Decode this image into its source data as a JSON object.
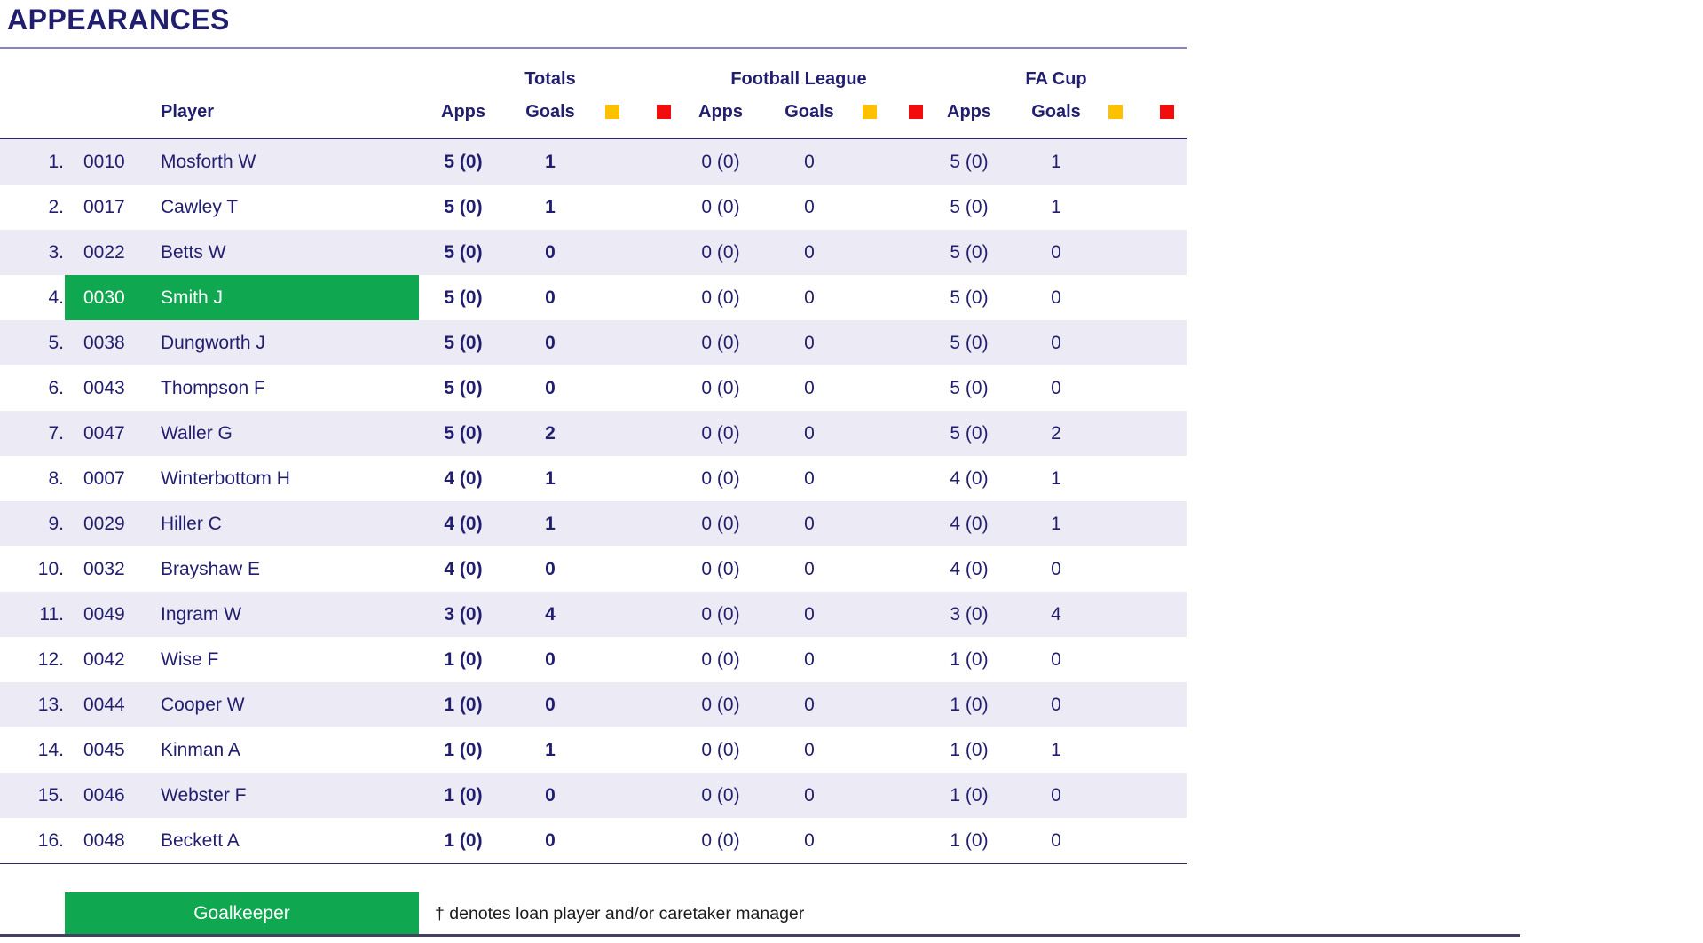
{
  "title": "APPEARANCES",
  "colors": {
    "navy": "#211E6E",
    "row_alt": "#ECEAF5",
    "green": "#0FA750",
    "yellow_card": "#FFC000",
    "red_card": "#F20C0C",
    "rule_purple": "#8884BE",
    "rule_navy": "#2C2966",
    "bottom_rule": "#43435F",
    "footnote_color": "#1A1A1A"
  },
  "table": {
    "groups": {
      "totals": "Totals",
      "football_league": "Football League",
      "fa_cup": "FA Cup"
    },
    "columns": {
      "player": "Player",
      "apps": "Apps",
      "goals": "Goals"
    },
    "rows": [
      {
        "rank": "1.",
        "id": "0010",
        "name": "Mosforth W",
        "totals_apps": "5 (0)",
        "totals_goals": "1",
        "fl_apps": "0 (0)",
        "fl_goals": "0",
        "fa_apps": "5 (0)",
        "fa_goals": "1",
        "goalkeeper": false
      },
      {
        "rank": "2.",
        "id": "0017",
        "name": "Cawley T",
        "totals_apps": "5 (0)",
        "totals_goals": "1",
        "fl_apps": "0 (0)",
        "fl_goals": "0",
        "fa_apps": "5 (0)",
        "fa_goals": "1",
        "goalkeeper": false
      },
      {
        "rank": "3.",
        "id": "0022",
        "name": "Betts W",
        "totals_apps": "5 (0)",
        "totals_goals": "0",
        "fl_apps": "0 (0)",
        "fl_goals": "0",
        "fa_apps": "5 (0)",
        "fa_goals": "0",
        "goalkeeper": false
      },
      {
        "rank": "4.",
        "id": "0030",
        "name": "Smith J",
        "totals_apps": "5 (0)",
        "totals_goals": "0",
        "fl_apps": "0 (0)",
        "fl_goals": "0",
        "fa_apps": "5 (0)",
        "fa_goals": "0",
        "goalkeeper": true
      },
      {
        "rank": "5.",
        "id": "0038",
        "name": "Dungworth J",
        "totals_apps": "5 (0)",
        "totals_goals": "0",
        "fl_apps": "0 (0)",
        "fl_goals": "0",
        "fa_apps": "5 (0)",
        "fa_goals": "0",
        "goalkeeper": false
      },
      {
        "rank": "6.",
        "id": "0043",
        "name": "Thompson F",
        "totals_apps": "5 (0)",
        "totals_goals": "0",
        "fl_apps": "0 (0)",
        "fl_goals": "0",
        "fa_apps": "5 (0)",
        "fa_goals": "0",
        "goalkeeper": false
      },
      {
        "rank": "7.",
        "id": "0047",
        "name": "Waller G",
        "totals_apps": "5 (0)",
        "totals_goals": "2",
        "fl_apps": "0 (0)",
        "fl_goals": "0",
        "fa_apps": "5 (0)",
        "fa_goals": "2",
        "goalkeeper": false
      },
      {
        "rank": "8.",
        "id": "0007",
        "name": "Winterbottom H",
        "totals_apps": "4 (0)",
        "totals_goals": "1",
        "fl_apps": "0 (0)",
        "fl_goals": "0",
        "fa_apps": "4 (0)",
        "fa_goals": "1",
        "goalkeeper": false
      },
      {
        "rank": "9.",
        "id": "0029",
        "name": "Hiller C",
        "totals_apps": "4 (0)",
        "totals_goals": "1",
        "fl_apps": "0 (0)",
        "fl_goals": "0",
        "fa_apps": "4 (0)",
        "fa_goals": "1",
        "goalkeeper": false
      },
      {
        "rank": "10.",
        "id": "0032",
        "name": "Brayshaw E",
        "totals_apps": "4 (0)",
        "totals_goals": "0",
        "fl_apps": "0 (0)",
        "fl_goals": "0",
        "fa_apps": "4 (0)",
        "fa_goals": "0",
        "goalkeeper": false
      },
      {
        "rank": "11.",
        "id": "0049",
        "name": "Ingram W",
        "totals_apps": "3 (0)",
        "totals_goals": "4",
        "fl_apps": "0 (0)",
        "fl_goals": "0",
        "fa_apps": "3 (0)",
        "fa_goals": "4",
        "goalkeeper": false
      },
      {
        "rank": "12.",
        "id": "0042",
        "name": "Wise F",
        "totals_apps": "1 (0)",
        "totals_goals": "0",
        "fl_apps": "0 (0)",
        "fl_goals": "0",
        "fa_apps": "1 (0)",
        "fa_goals": "0",
        "goalkeeper": false
      },
      {
        "rank": "13.",
        "id": "0044",
        "name": "Cooper W",
        "totals_apps": "1 (0)",
        "totals_goals": "0",
        "fl_apps": "0 (0)",
        "fl_goals": "0",
        "fa_apps": "1 (0)",
        "fa_goals": "0",
        "goalkeeper": false
      },
      {
        "rank": "14.",
        "id": "0045",
        "name": "Kinman A",
        "totals_apps": "1 (0)",
        "totals_goals": "1",
        "fl_apps": "0 (0)",
        "fl_goals": "0",
        "fa_apps": "1 (0)",
        "fa_goals": "1",
        "goalkeeper": false
      },
      {
        "rank": "15.",
        "id": "0046",
        "name": "Webster F",
        "totals_apps": "1 (0)",
        "totals_goals": "0",
        "fl_apps": "0 (0)",
        "fl_goals": "0",
        "fa_apps": "1 (0)",
        "fa_goals": "0",
        "goalkeeper": false
      },
      {
        "rank": "16.",
        "id": "0048",
        "name": "Beckett A",
        "totals_apps": "1 (0)",
        "totals_goals": "0",
        "fl_apps": "0 (0)",
        "fl_goals": "0",
        "fa_apps": "1 (0)",
        "fa_goals": "0",
        "goalkeeper": false
      }
    ]
  },
  "legend": {
    "goalkeeper": "Goalkeeper",
    "footnote": "† denotes loan player and/or caretaker manager"
  }
}
